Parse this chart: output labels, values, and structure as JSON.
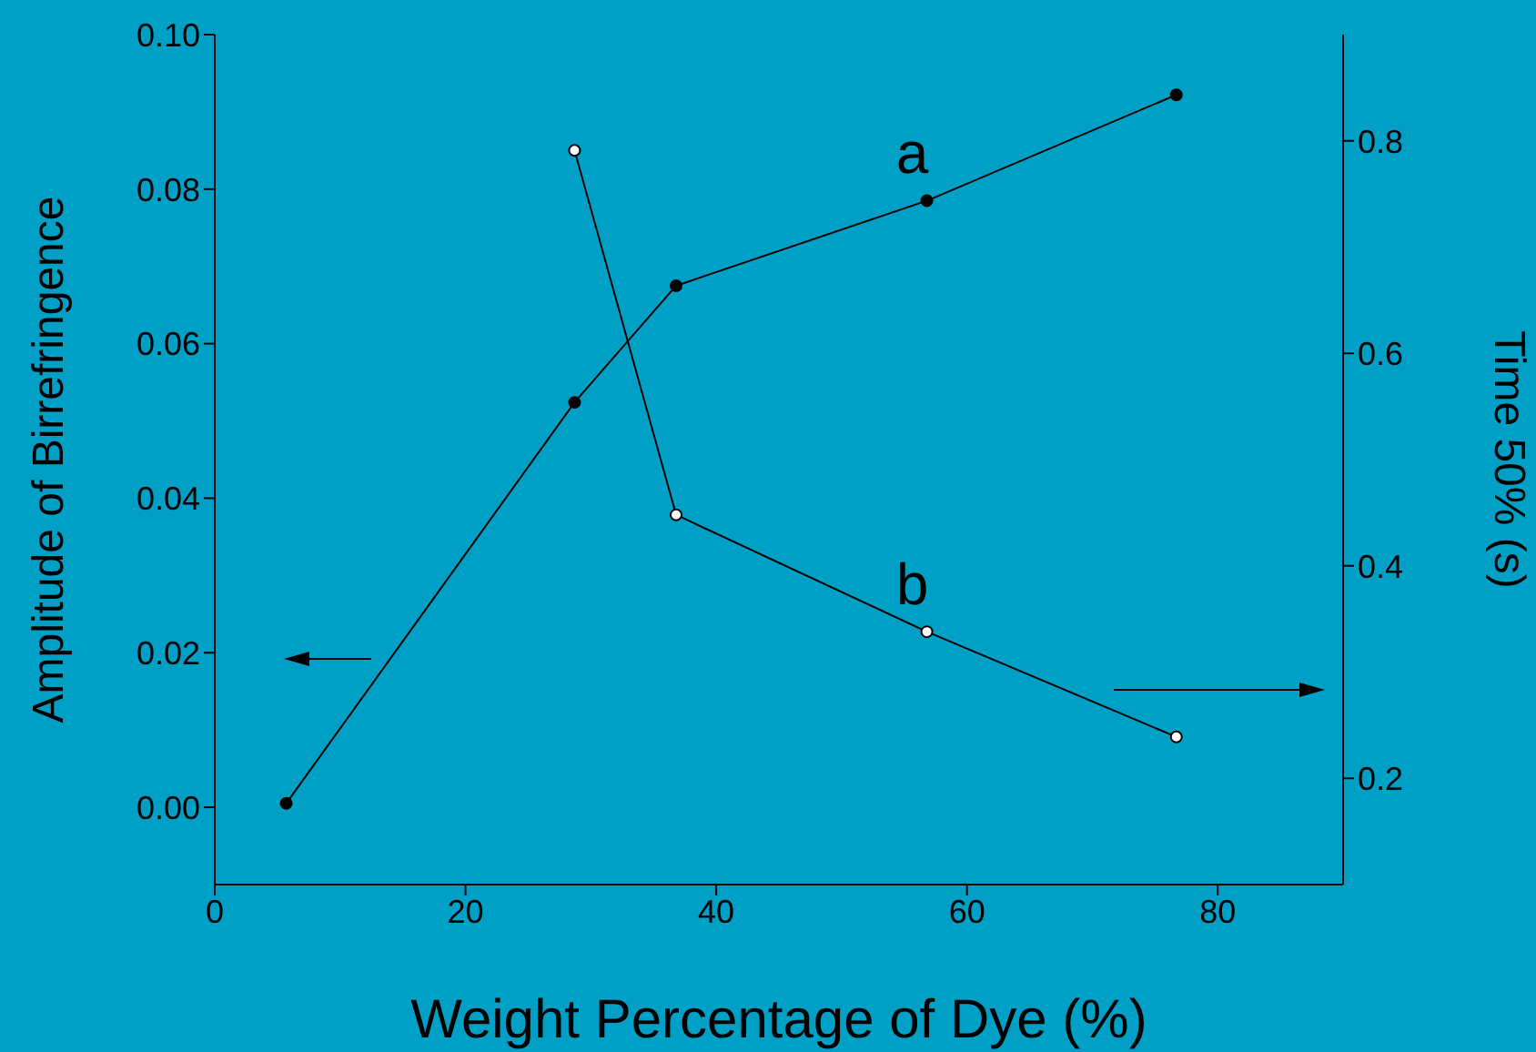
{
  "chart_data": {
    "type": "line",
    "xlabel": "Weight Percentage of Dye (%)",
    "ylabel": "Amplitude of Birrefringence",
    "y2label": "Time 50% (s)",
    "xlim": [
      0,
      90
    ],
    "xticks": [
      0,
      20,
      40,
      60,
      80
    ],
    "ylim": [
      -0.01,
      0.1
    ],
    "yticks": [
      {
        "value": 0,
        "label": "0.00"
      },
      {
        "value": 0.02,
        "label": "0.02"
      },
      {
        "value": 0.04,
        "label": "0.04"
      },
      {
        "value": 0.06,
        "label": "0.06"
      },
      {
        "value": 0.08,
        "label": "0.08"
      },
      {
        "value": 0.1,
        "label": "0.10"
      }
    ],
    "y2lim": [
      0.1,
      0.9
    ],
    "y2ticks": [
      0.2,
      0.4,
      0.6,
      0.8
    ],
    "marker": "circle",
    "series": [
      {
        "color": "#000000",
        "x": [
          5.7,
          28.7,
          36.8,
          56.8,
          76.7
        ],
        "values": [
          0.0005,
          0.0524,
          0.0675,
          0.0785,
          0.0922
        ]
      },
      {
        "color": "#000000",
        "axis": "y2",
        "x": [
          28.7,
          36.8,
          56.8,
          76.7
        ],
        "values": [
          0.791,
          0.448,
          0.338,
          0.239
        ]
      }
    ],
    "annotations": [
      "a",
      "b"
    ]
  }
}
